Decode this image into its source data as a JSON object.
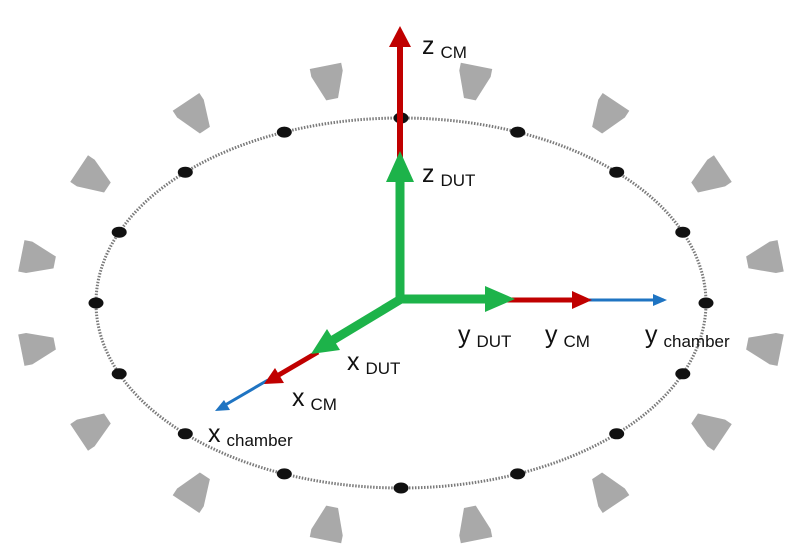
{
  "colors": {
    "ring": "#7a7a7a",
    "sensor": "#111111",
    "probe": "#a9a9a9",
    "dut": "#1db34a",
    "cm": "#c00000",
    "chamber": "#1f74c2"
  },
  "icons": {
    "sensor": "dot-icon",
    "probe": "antenna-probe-icon"
  },
  "labels": {
    "z_cm": {
      "main": "z",
      "sub": "CM"
    },
    "z_dut": {
      "main": "z",
      "sub": "DUT"
    },
    "y_dut": {
      "main": "y",
      "sub": "DUT"
    },
    "y_cm": {
      "main": "y",
      "sub": "CM"
    },
    "y_chamber": {
      "main": "y",
      "sub": "chamber"
    },
    "x_dut": {
      "main": "x",
      "sub": "DUT"
    },
    "x_cm": {
      "main": "x",
      "sub": "CM"
    },
    "x_chamber": {
      "main": "x",
      "sub": "chamber"
    }
  }
}
